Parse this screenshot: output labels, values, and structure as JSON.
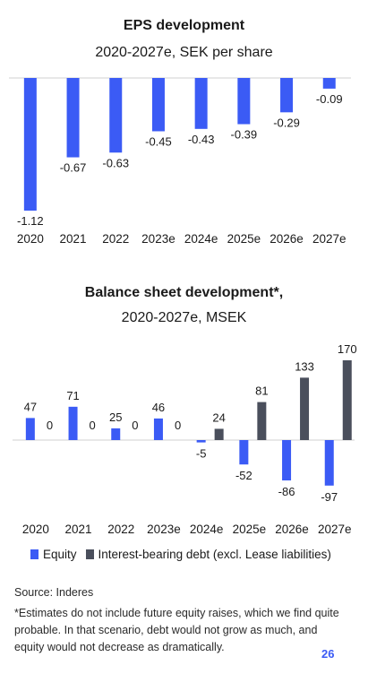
{
  "chart_data": [
    {
      "type": "bar",
      "title": "EPS development",
      "subtitle": "2020-2027e, SEK per share",
      "categories": [
        "2020",
        "2021",
        "2022",
        "2023e",
        "2024e",
        "2025e",
        "2026e",
        "2027e"
      ],
      "values": [
        -1.12,
        -0.67,
        -0.63,
        -0.45,
        -0.43,
        -0.39,
        -0.29,
        -0.09
      ],
      "value_labels": [
        "-1.12",
        "-0.67",
        "-0.63",
        "-0.45",
        "-0.43",
        "-0.39",
        "-0.29",
        "-0.09"
      ],
      "color": "#3b5bf5",
      "ylim": [
        -1.12,
        0
      ],
      "grid": false
    },
    {
      "type": "bar",
      "title": "Balance sheet development*,",
      "subtitle": "2020-2027e, MSEK",
      "categories": [
        "2020",
        "2021",
        "2022",
        "2023e",
        "2024e",
        "2025e",
        "2026e",
        "2027e"
      ],
      "series": [
        {
          "name": "Equity",
          "color": "#3b5bf5",
          "values": [
            47,
            71,
            25,
            46,
            -5,
            -52,
            -86,
            -97
          ]
        },
        {
          "name": "Interest-bearing debt (excl. Lease liabilities)",
          "color": "#4a4f5c",
          "values": [
            0,
            0,
            0,
            0,
            24,
            81,
            133,
            170
          ]
        }
      ],
      "ylim": [
        -97,
        170
      ],
      "legend_position": "bottom",
      "grid": false
    }
  ],
  "footer": {
    "source": "Source: Inderes",
    "note": "*Estimates do not include future equity raises, which we find quite probable. In that scenario, debt would not grow as much, and equity would not decrease as dramatically.",
    "page": "26"
  }
}
